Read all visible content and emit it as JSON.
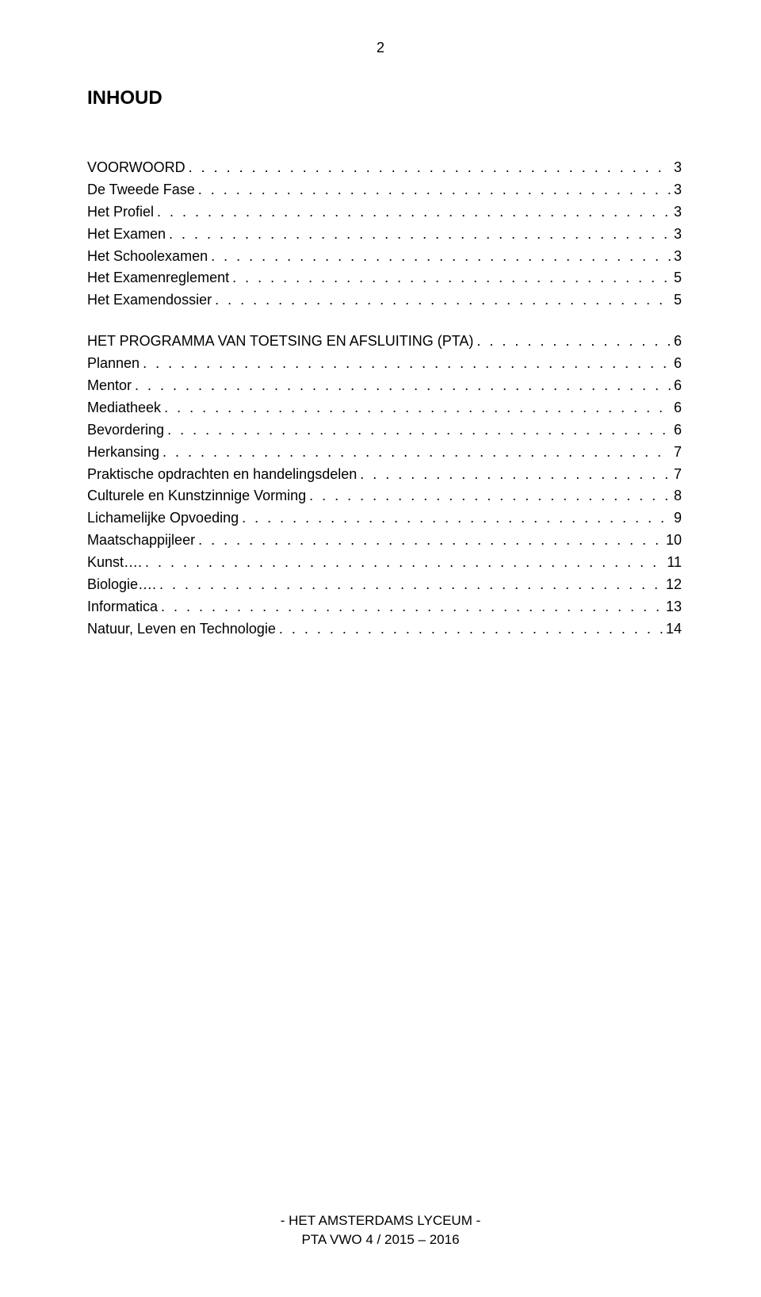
{
  "pageNumber": "2",
  "title": "INHOUD",
  "toc": [
    {
      "label": "VOORWOORD",
      "page": "3"
    },
    {
      "label": "De Tweede Fase",
      "page": "3"
    },
    {
      "label": "Het Profiel",
      "page": "3"
    },
    {
      "label": "Het Examen",
      "page": "3"
    },
    {
      "label": "Het Schoolexamen",
      "page": "3"
    },
    {
      "label": "Het Examenreglement",
      "page": "5"
    },
    {
      "label": "Het Examendossier",
      "page": "5"
    },
    {
      "gap": true
    },
    {
      "label": "HET PROGRAMMA VAN TOETSING EN AFSLUITING (PTA)",
      "page": "6"
    },
    {
      "label": "Plannen",
      "page": "6"
    },
    {
      "label": "Mentor",
      "page": "6"
    },
    {
      "label": "Mediatheek",
      "page": "6"
    },
    {
      "label": "Bevordering",
      "page": "6"
    },
    {
      "label": "Herkansing",
      "page": "7"
    },
    {
      "label": "Praktische opdrachten en handelingsdelen",
      "page": "7"
    },
    {
      "label": "Culturele en Kunstzinnige Vorming",
      "page": "8"
    },
    {
      "label": "Lichamelijke Opvoeding",
      "page": "9"
    },
    {
      "label": "Maatschappijleer",
      "page": "10"
    },
    {
      "label": "Kunst….",
      "page": "11"
    },
    {
      "label": "Biologie….",
      "page": "12"
    },
    {
      "label": "Informatica",
      "page": "13"
    },
    {
      "label": "Natuur, Leven en Technologie",
      "page": "14"
    }
  ],
  "footer": {
    "line1": "- HET AMSTERDAMS LYCEUM -",
    "line2": "PTA VWO 4 / 2015 – 2016"
  },
  "style": {
    "dotFill": ". . . . . . . . . . . . . . . . . . . . . . . . . . . . . . . . . . . . . . . . . . . . . . . . . . . . . . . . . . . . . . . . . . . . . . . . . . . . . . . . . . . . . . . . . . . . . . . . . . . . . . . . . . . . . . . . . . . . . . . . . . . . . . . . . . . . . . . . . . . . . . . . . . . . . . . . . . . . . . . ."
  }
}
